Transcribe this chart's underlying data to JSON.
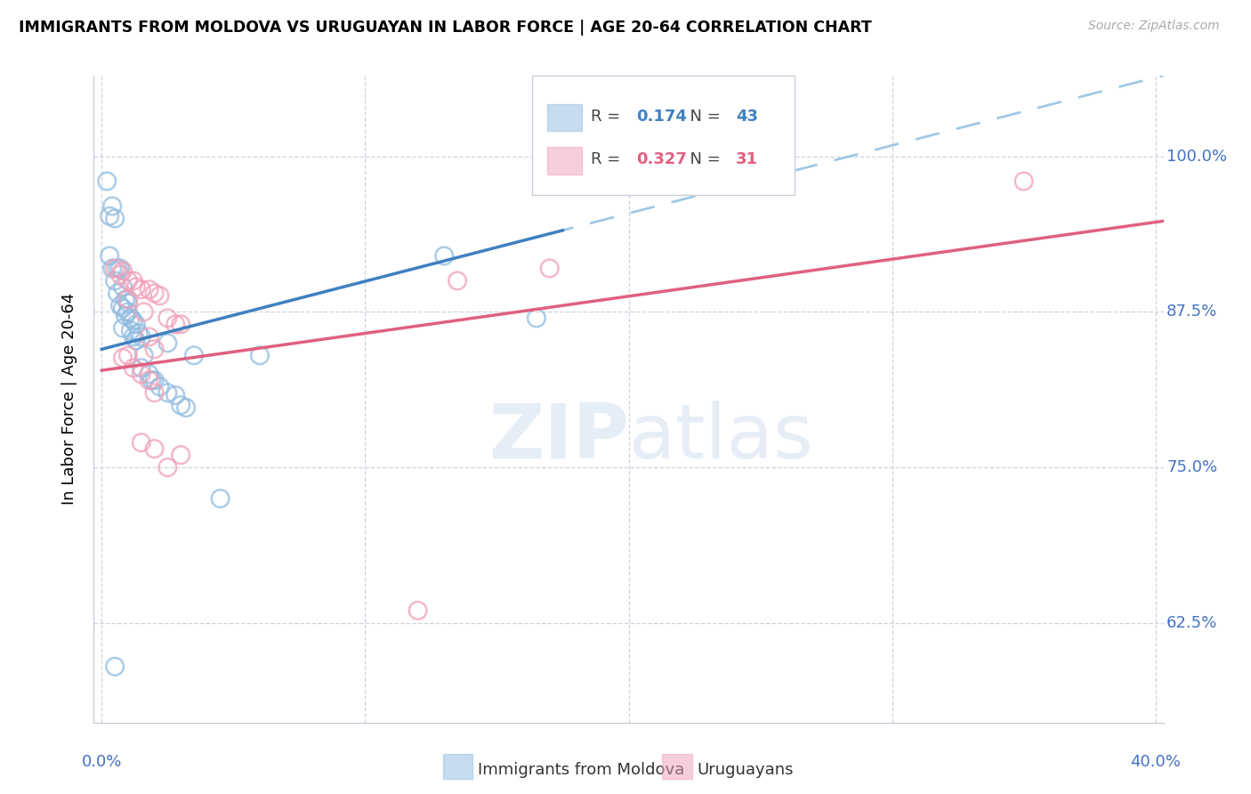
{
  "title": "IMMIGRANTS FROM MOLDOVA VS URUGUAYAN IN LABOR FORCE | AGE 20-64 CORRELATION CHART",
  "source": "Source: ZipAtlas.com",
  "ylabel": "In Labor Force | Age 20-64",
  "ytick_labels": [
    "100.0%",
    "87.5%",
    "75.0%",
    "62.5%"
  ],
  "ytick_values": [
    1.0,
    0.875,
    0.75,
    0.625
  ],
  "xlim": [
    -0.003,
    0.403
  ],
  "ylim": [
    0.545,
    1.065
  ],
  "legend_blue_R": "0.174",
  "legend_blue_N": "43",
  "legend_pink_R": "0.327",
  "legend_pink_N": "31",
  "legend_blue_label": "Immigrants from Moldova",
  "legend_pink_label": "Uruguayans",
  "blue_scatter_color": "#90bce0",
  "pink_scatter_color": "#f0a0b8",
  "trend_blue_solid": "#4080c0",
  "trend_blue_dashed": "#90c0e0",
  "trend_pink_solid": "#e06080",
  "grid_color": "#c8d0dc",
  "tick_color": "#4472c4",
  "watermark_text": "ZIPatlas",
  "blue_trend_x0": 0.0,
  "blue_trend_y0": 0.845,
  "blue_trend_x1": 0.403,
  "blue_trend_y1": 1.065,
  "pink_trend_x0": 0.0,
  "pink_trend_y0": 0.828,
  "pink_trend_x1": 0.403,
  "pink_trend_y1": 0.948,
  "blue_points_x": [
    0.002,
    0.003,
    0.004,
    0.003,
    0.004,
    0.005,
    0.005,
    0.006,
    0.006,
    0.007,
    0.007,
    0.008,
    0.008,
    0.008,
    0.009,
    0.009,
    0.01,
    0.01,
    0.011,
    0.011,
    0.012,
    0.012,
    0.013,
    0.013,
    0.014,
    0.015,
    0.015,
    0.016,
    0.018,
    0.019,
    0.02,
    0.022,
    0.025,
    0.025,
    0.028,
    0.03,
    0.032,
    0.035,
    0.045,
    0.06,
    0.13,
    0.165,
    0.005
  ],
  "blue_points_y": [
    0.98,
    0.952,
    0.96,
    0.92,
    0.91,
    0.95,
    0.9,
    0.91,
    0.89,
    0.91,
    0.88,
    0.895,
    0.878,
    0.862,
    0.885,
    0.872,
    0.882,
    0.875,
    0.87,
    0.86,
    0.868,
    0.855,
    0.865,
    0.852,
    0.858,
    0.855,
    0.83,
    0.84,
    0.825,
    0.82,
    0.82,
    0.815,
    0.81,
    0.85,
    0.808,
    0.8,
    0.798,
    0.84,
    0.725,
    0.84,
    0.92,
    0.87,
    0.59
  ],
  "pink_points_x": [
    0.005,
    0.007,
    0.008,
    0.01,
    0.01,
    0.012,
    0.013,
    0.015,
    0.015,
    0.016,
    0.018,
    0.018,
    0.02,
    0.02,
    0.022,
    0.025,
    0.028,
    0.03,
    0.01,
    0.015,
    0.018,
    0.02,
    0.025,
    0.12,
    0.135,
    0.17,
    0.35,
    0.008,
    0.012,
    0.02,
    0.03
  ],
  "pink_points_y": [
    0.91,
    0.905,
    0.908,
    0.9,
    0.885,
    0.9,
    0.895,
    0.893,
    0.825,
    0.875,
    0.893,
    0.855,
    0.89,
    0.81,
    0.888,
    0.87,
    0.865,
    0.865,
    0.84,
    0.77,
    0.82,
    0.765,
    0.75,
    0.635,
    0.9,
    0.91,
    0.98,
    0.838,
    0.83,
    0.845,
    0.76
  ]
}
